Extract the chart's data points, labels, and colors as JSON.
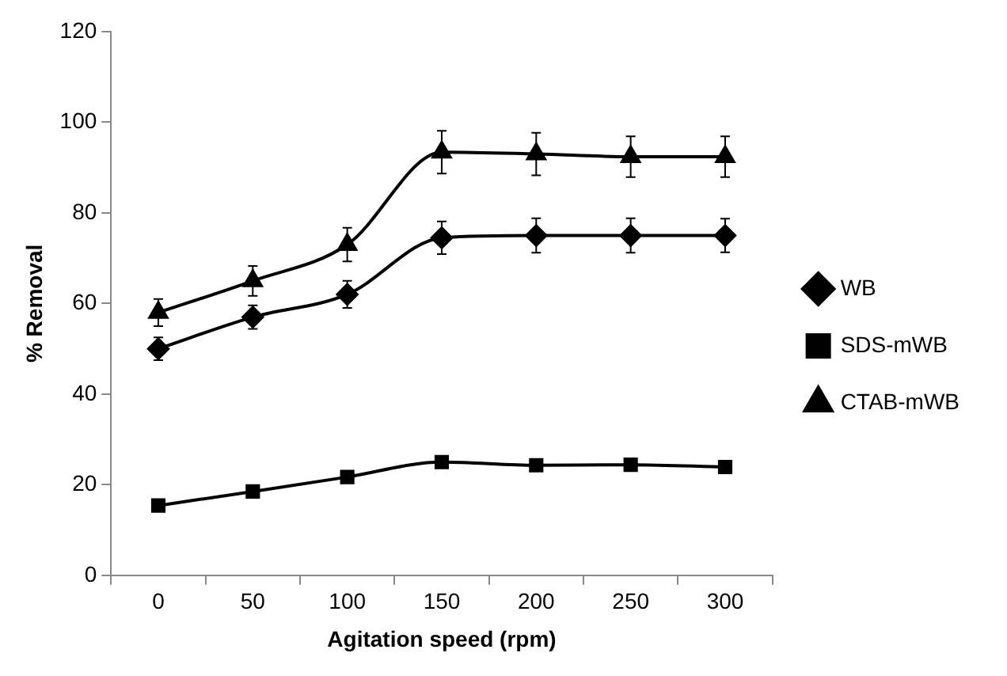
{
  "chart_data": {
    "type": "line",
    "xlabel": "Agitation speed (rpm)",
    "ylabel": "% Removal",
    "categories": [
      "0",
      "50",
      "100",
      "150",
      "200",
      "250",
      "300"
    ],
    "ylim": [
      0,
      120
    ],
    "yticks": [
      0,
      20,
      40,
      60,
      80,
      100,
      120
    ],
    "grid": false,
    "legend": "right",
    "line_style": "solid",
    "series": [
      {
        "name": "WB",
        "color": "#000000",
        "marker": "diamond",
        "values": [
          50,
          57,
          62,
          74.5,
          75,
          75,
          75
        ],
        "errors": [
          2.5,
          2.6,
          3,
          3.6,
          3.8,
          3.8,
          3.7
        ]
      },
      {
        "name": "SDS-mWB",
        "color": "#000000",
        "marker": "square",
        "values": [
          15.4,
          18.5,
          21.7,
          25,
          24.3,
          24.4,
          23.9
        ]
      },
      {
        "name": "CTAB-mWB",
        "color": "#000000",
        "marker": "triangle",
        "values": [
          58,
          65,
          73,
          93.4,
          93,
          92.4,
          92.4
        ],
        "errors": [
          3,
          3.3,
          3.7,
          4.7,
          4.7,
          4.5,
          4.5
        ]
      }
    ]
  }
}
